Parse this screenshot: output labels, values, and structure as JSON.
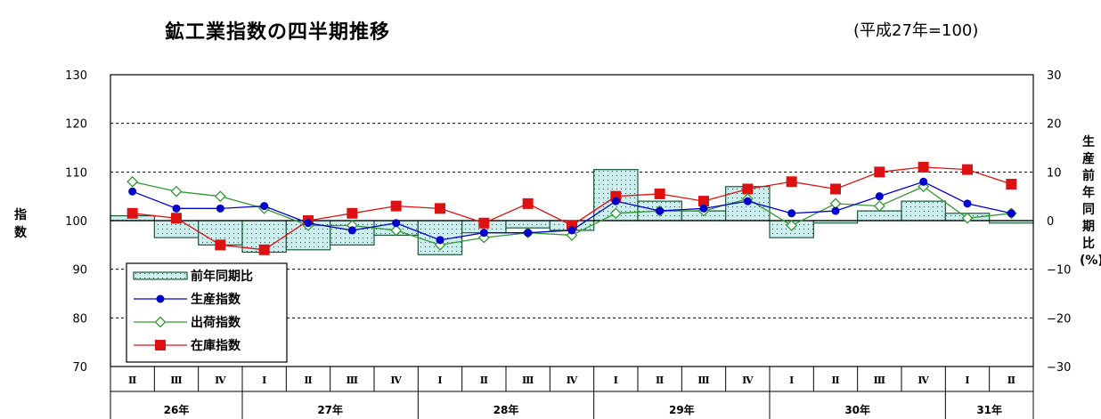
{
  "title": "鉱工業指数の四半期推移",
  "base_note": "(平成27年=100)",
  "chart_data": {
    "type": "bar+line",
    "title": "鉱工業指数の四半期推移",
    "subtitle": "(平成27年=100)",
    "ylabel_left": "指数",
    "ylabel_right": "生産前年同期比(%)",
    "ylim_left": [
      70,
      130
    ],
    "ylim_right": [
      -30,
      30
    ],
    "yticks_left": [
      "130",
      "120",
      "110",
      "100",
      "90",
      "80",
      "70"
    ],
    "yticks_right": [
      "30",
      "20",
      "10",
      "0",
      "−10",
      "−20",
      "−30"
    ],
    "categories": [
      "Ⅱ",
      "Ⅲ",
      "Ⅳ",
      "Ⅰ",
      "Ⅱ",
      "Ⅲ",
      "Ⅳ",
      "Ⅰ",
      "Ⅱ",
      "Ⅲ",
      "Ⅳ",
      "Ⅰ",
      "Ⅱ",
      "Ⅲ",
      "Ⅳ",
      "Ⅰ",
      "Ⅱ",
      "Ⅲ",
      "Ⅳ",
      "Ⅰ",
      "Ⅱ"
    ],
    "years": [
      {
        "label": "26年",
        "start": 0,
        "end": 2
      },
      {
        "label": "27年",
        "start": 3,
        "end": 6
      },
      {
        "label": "28年",
        "start": 7,
        "end": 10
      },
      {
        "label": "29年",
        "start": 11,
        "end": 14
      },
      {
        "label": "30年",
        "start": 15,
        "end": 18
      },
      {
        "label": "31年",
        "start": 19,
        "end": 20
      }
    ],
    "series": [
      {
        "name": "前年同期比",
        "kind": "bar",
        "axis": "right",
        "color": "#1a5a3a",
        "fill": "#cdeeee",
        "values": [
          1,
          -3.5,
          -5,
          -6.5,
          -6,
          -5,
          -3,
          -7,
          -2.5,
          -1.5,
          -2,
          10.5,
          4,
          2,
          7,
          -3.5,
          -0.5,
          2,
          4,
          1.5,
          -0.5
        ]
      },
      {
        "name": "生産指数",
        "kind": "line",
        "axis": "left",
        "color": "#0000cc",
        "marker": "circle",
        "values": [
          106,
          102.5,
          102.5,
          103,
          99.5,
          98,
          99.5,
          96,
          97.5,
          97.5,
          98,
          104,
          102,
          102.5,
          104,
          101.5,
          102,
          105,
          108,
          103.5,
          101.5
        ]
      },
      {
        "name": "出荷指数",
        "kind": "line",
        "axis": "left",
        "color": "#339933",
        "marker": "diamond",
        "values": [
          108,
          106,
          105,
          102.5,
          99,
          99,
          98,
          95,
          96.5,
          97.5,
          97,
          101.5,
          102,
          102,
          104.5,
          99,
          103.5,
          103,
          107,
          100.5,
          101.5
        ]
      },
      {
        "name": "在庫指数",
        "kind": "line",
        "axis": "left",
        "color": "#dd1111",
        "marker": "square",
        "values": [
          101.5,
          100.5,
          95,
          94,
          100,
          101.5,
          103,
          102.5,
          99.5,
          103.5,
          99,
          105,
          105.5,
          104,
          106.5,
          108,
          106.5,
          110,
          111,
          110.5,
          107.5
        ]
      }
    ],
    "legend_position": "bottom-left",
    "grid": "dashed horizontal"
  }
}
